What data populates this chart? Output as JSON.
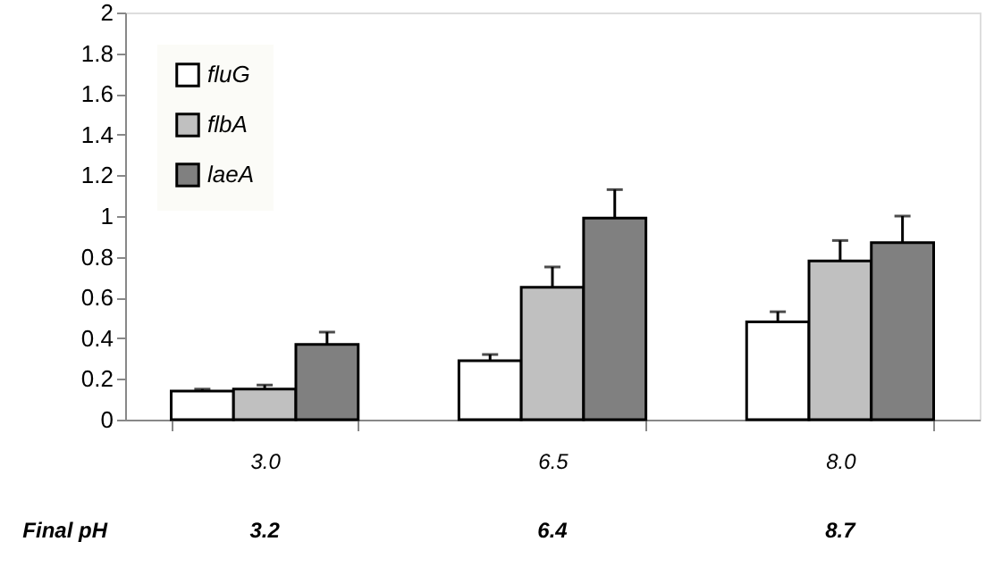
{
  "chart_data": {
    "type": "bar",
    "categories": [
      "3.0",
      "6.5",
      "8.0"
    ],
    "series": [
      {
        "name": "fluG",
        "color": "#ffffff",
        "values": [
          0.14,
          0.29,
          0.48
        ],
        "errors": [
          0.01,
          0.03,
          0.05
        ]
      },
      {
        "name": "flbA",
        "color": "#c0c0c0",
        "values": [
          0.15,
          0.65,
          0.78
        ],
        "errors": [
          0.02,
          0.1,
          0.1
        ]
      },
      {
        "name": "laeA",
        "color": "#808080",
        "values": [
          0.37,
          0.99,
          0.87
        ],
        "errors": [
          0.06,
          0.14,
          0.13
        ]
      }
    ],
    "ylim": [
      0,
      2
    ],
    "yticks": [
      0,
      0.2,
      0.4,
      0.6,
      0.8,
      1,
      1.2,
      1.4,
      1.6,
      1.8,
      2
    ],
    "grid": false,
    "legend": "top left",
    "annotations": [
      "Final pH",
      "3.2",
      "6.4",
      "8.7"
    ]
  }
}
